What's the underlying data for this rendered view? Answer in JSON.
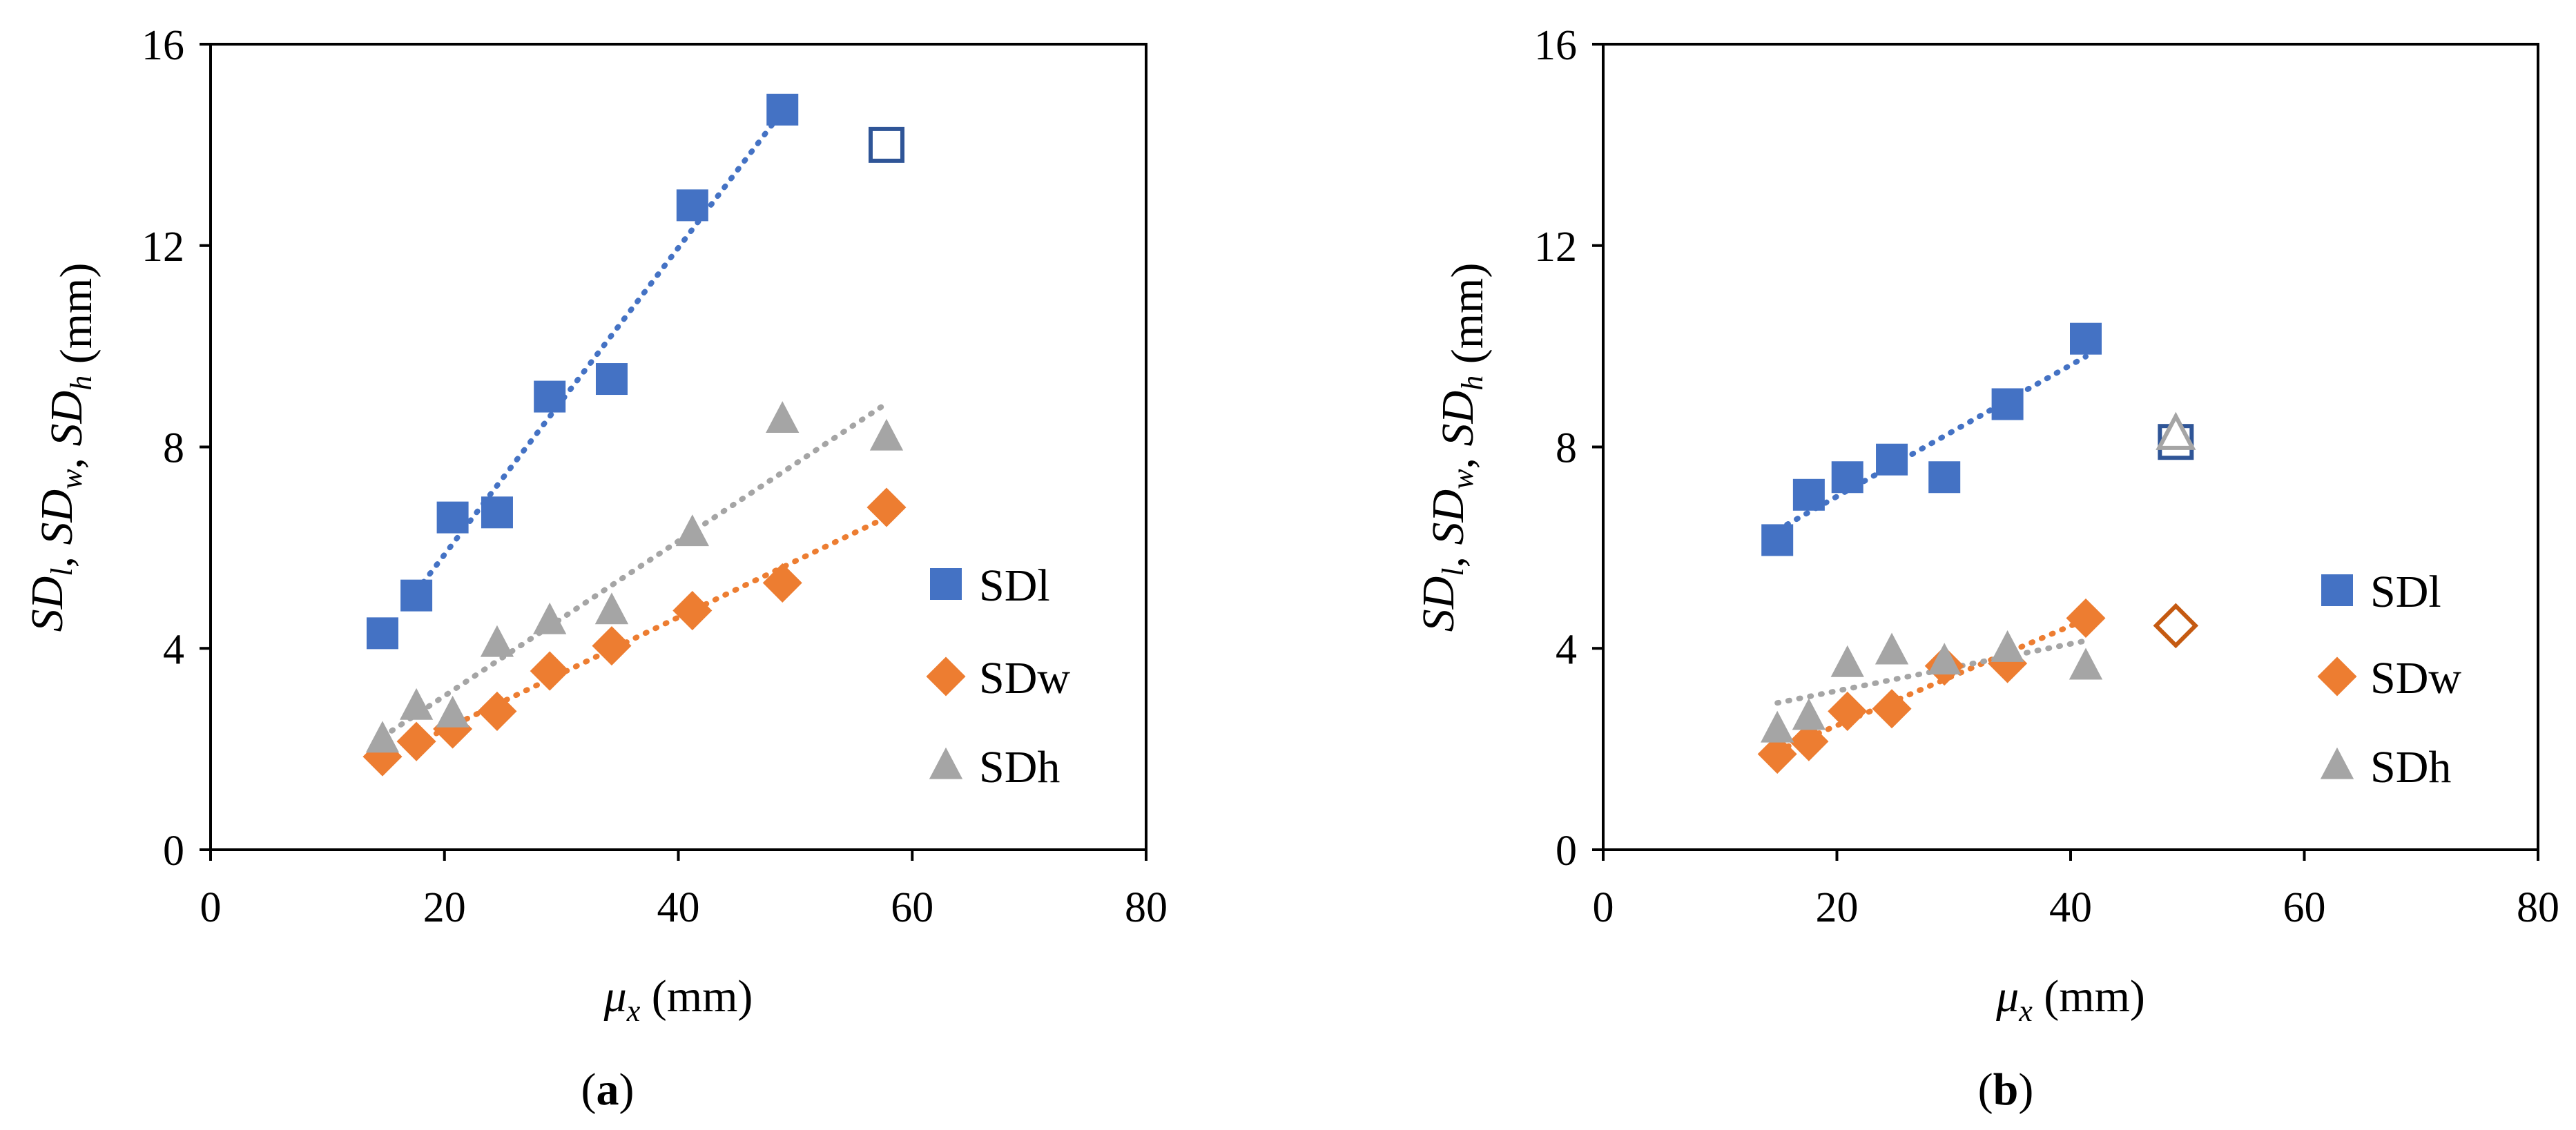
{
  "chart_data": [
    {
      "type": "scatter",
      "panel_label": "(a)",
      "panel_letter": "a",
      "ylabel": "SD_l, SD_w, SD_h (mm)",
      "xlabel": "μ_x (mm)",
      "xlim": [
        0,
        80
      ],
      "ylim": [
        0,
        16
      ],
      "xticks": [
        0,
        20,
        40,
        60,
        80
      ],
      "yticks": [
        0,
        4,
        8,
        12,
        16
      ],
      "legend_position": "right",
      "series": [
        {
          "name": "SDl",
          "color": "#4472C4",
          "marker": "square",
          "x": [
            14.7,
            17.6,
            20.7,
            24.5,
            29.0,
            34.3,
            41.2,
            48.9
          ],
          "y": [
            4.3,
            5.05,
            6.6,
            6.7,
            9.0,
            9.35,
            12.8,
            14.7
          ],
          "trend_x": [
            17.6,
            48.9
          ],
          "outlier": {
            "x": 57.8,
            "y": 14.0
          }
        },
        {
          "name": "SDw",
          "color": "#ED7D31",
          "marker": "diamond",
          "x": [
            14.7,
            17.6,
            20.7,
            24.5,
            29.0,
            34.3,
            41.2,
            48.9,
            57.8
          ],
          "y": [
            1.85,
            2.15,
            2.4,
            2.75,
            3.55,
            4.05,
            4.75,
            5.3,
            6.8
          ],
          "trend_x": [
            17.6,
            57.8
          ]
        },
        {
          "name": "SDh",
          "color": "#A5A5A5",
          "marker": "triangle",
          "x": [
            14.7,
            17.6,
            20.7,
            24.5,
            29.0,
            34.3,
            41.2,
            48.9,
            57.8
          ],
          "y": [
            2.2,
            2.85,
            2.7,
            4.1,
            4.55,
            4.75,
            6.3,
            8.55,
            8.2
          ],
          "trend_x": [
            14.7,
            57.8
          ]
        }
      ]
    },
    {
      "type": "scatter",
      "panel_label": "(b)",
      "panel_letter": "b",
      "ylabel": "SD_l, SD_w, SD_h (mm)",
      "xlabel": "μ_x (mm)",
      "xlim": [
        0,
        80
      ],
      "ylim": [
        0,
        16
      ],
      "xticks": [
        0,
        20,
        40,
        60,
        80
      ],
      "yticks": [
        0,
        4,
        8,
        12,
        16
      ],
      "legend_position": "right",
      "series": [
        {
          "name": "SDl",
          "color": "#4472C4",
          "marker": "square",
          "x": [
            14.9,
            17.6,
            20.9,
            24.7,
            29.2,
            34.6,
            41.3
          ],
          "y": [
            6.15,
            7.05,
            7.4,
            7.75,
            7.4,
            8.85,
            10.15
          ],
          "trend_x": [
            14.9,
            41.3
          ],
          "outlier": {
            "x": 49.0,
            "y": 8.1
          }
        },
        {
          "name": "SDw",
          "color": "#ED7D31",
          "marker": "diamond",
          "x": [
            14.9,
            17.6,
            20.9,
            24.7,
            29.2,
            34.6,
            41.3
          ],
          "y": [
            1.9,
            2.15,
            2.75,
            2.8,
            3.65,
            3.7,
            4.6
          ],
          "trend_x": [
            14.9,
            41.3
          ],
          "outlier": {
            "x": 49.0,
            "y": 4.45
          }
        },
        {
          "name": "SDh",
          "color": "#A5A5A5",
          "marker": "triangle",
          "x": [
            14.9,
            17.6,
            20.9,
            24.7,
            29.2,
            34.6,
            41.3
          ],
          "y": [
            2.4,
            2.65,
            3.7,
            3.95,
            3.75,
            4.0,
            3.65
          ],
          "trend_x": [
            14.9,
            41.3
          ],
          "outlier": {
            "x": 49.0,
            "y": 8.25
          }
        }
      ]
    }
  ]
}
